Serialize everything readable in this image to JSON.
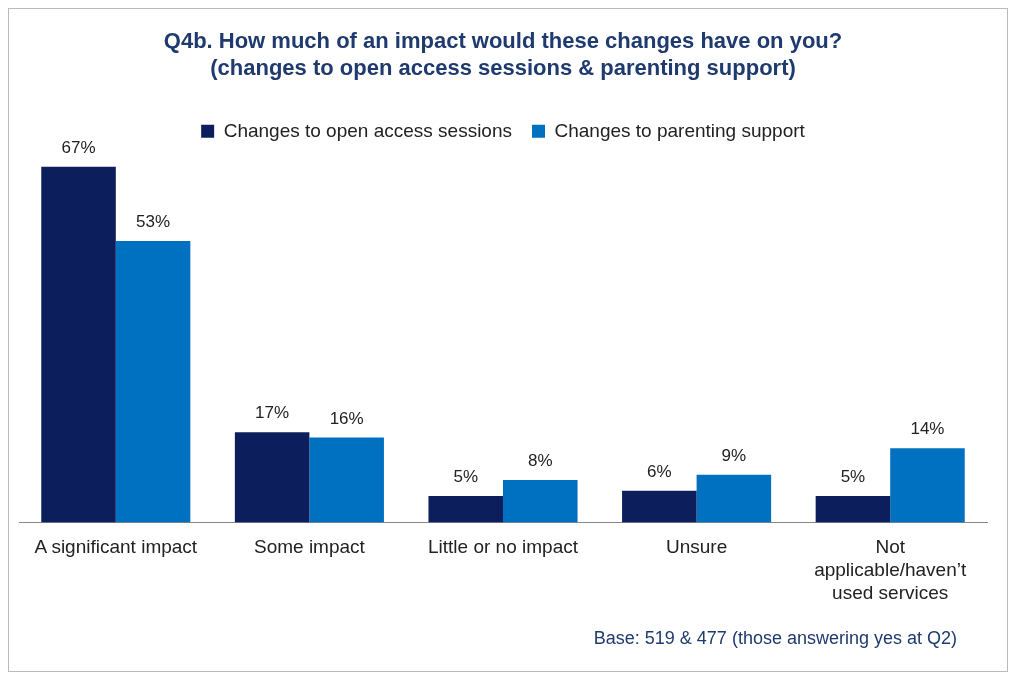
{
  "chart_data": {
    "type": "bar",
    "title": "Q4b. How much of an impact would these changes have on you?\n(changes to open access sessions & parenting support)",
    "categories": [
      "A significant impact",
      "Some impact",
      "Little or no impact",
      "Unsure",
      "Not applicable/haven’t used services"
    ],
    "series": [
      {
        "name": "Changes to open access sessions",
        "color": "#0c1f5c",
        "values": [
          67,
          17,
          5,
          6,
          5
        ],
        "value_labels": [
          "67%",
          "17%",
          "5%",
          "6%",
          "5%"
        ]
      },
      {
        "name": "Changes to parenting support",
        "color": "#0070c0",
        "values": [
          53,
          16,
          8,
          9,
          14
        ],
        "value_labels": [
          "53%",
          "16%",
          "8%",
          "9%",
          "14%"
        ]
      }
    ],
    "legend": "top",
    "grid": false,
    "annotations": [
      "Base: 519 & 477 (those answering yes at Q2)"
    ]
  }
}
